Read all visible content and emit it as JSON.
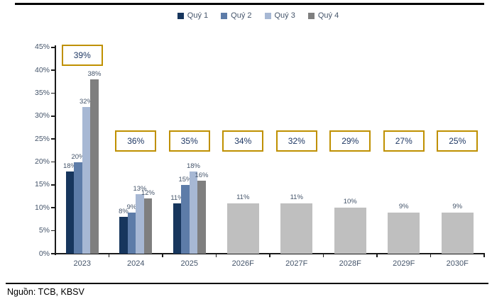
{
  "page": {
    "source_note": "Nguồn: TCB, KBSV"
  },
  "chart_data": {
    "type": "bar",
    "title": "",
    "categories": [
      "2023",
      "2024",
      "2025",
      "2026F",
      "2027F",
      "2028F",
      "2029F",
      "2030F"
    ],
    "series": [
      {
        "name": "Quý 1",
        "color": "#17365D",
        "values": [
          18,
          8,
          11,
          null,
          null,
          null,
          null,
          null
        ]
      },
      {
        "name": "Quý 2",
        "color": "#5D7CA8",
        "values": [
          20,
          9,
          15,
          null,
          null,
          null,
          null,
          null
        ]
      },
      {
        "name": "Quý 3",
        "color": "#A7B8D4",
        "values": [
          32,
          13,
          18,
          null,
          null,
          null,
          null,
          null
        ]
      },
      {
        "name": "Quý 4",
        "color": "#7F7F7F",
        "values": [
          38,
          12,
          16,
          null,
          null,
          null,
          null,
          null
        ]
      }
    ],
    "forecast_series": {
      "color": "#BFBFBF",
      "values": [
        null,
        null,
        null,
        11,
        11,
        10,
        9,
        9
      ]
    },
    "annotations": {
      "labels": [
        "39%",
        "36%",
        "35%",
        "34%",
        "32%",
        "29%",
        "27%",
        "25%"
      ]
    },
    "annotation_style": {
      "border_color": "#BF9000",
      "text_color": "#1F3864",
      "background": "#FFFFFF"
    },
    "y_axis": {
      "min": 0,
      "max": 45,
      "tick_step": 5,
      "tick_suffix": "%"
    },
    "value_suffix": "%",
    "legend_position": "top-center",
    "grid": false
  }
}
